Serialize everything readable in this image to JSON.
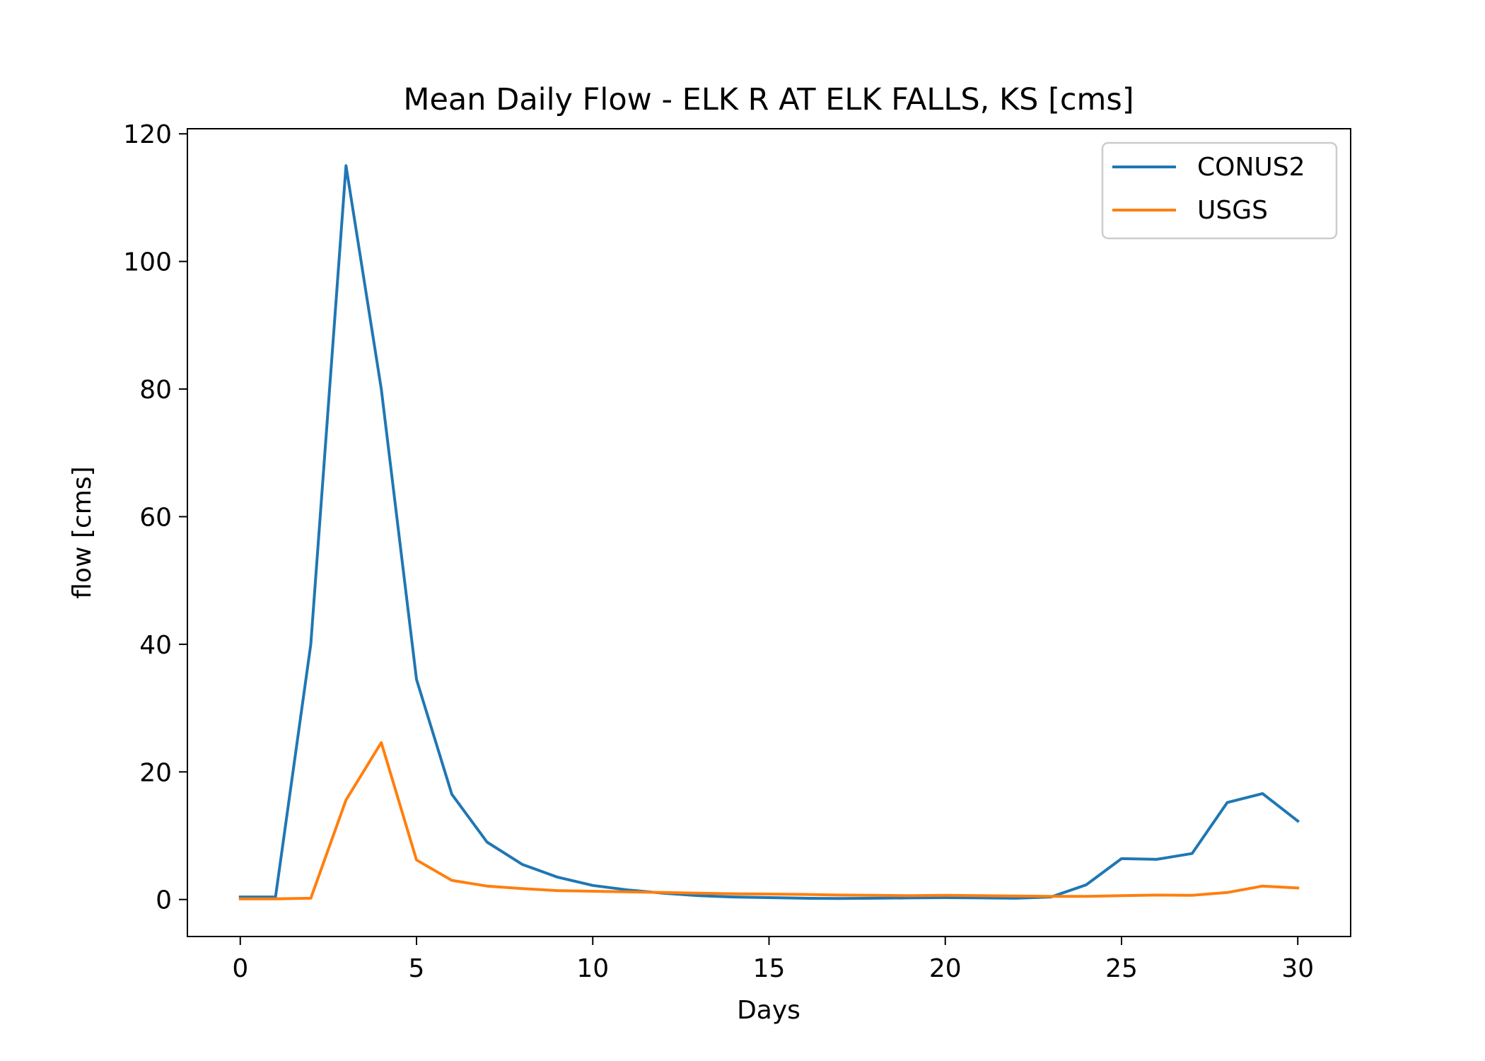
{
  "chart_data": {
    "type": "line",
    "title": "Mean Daily Flow - ELK R AT ELK FALLS, KS [cms]",
    "xlabel": "Days",
    "ylabel": "flow [cms]",
    "xlim": [
      -1.5,
      31.5
    ],
    "ylim": [
      -5.8,
      120.8
    ],
    "xticks": [
      0,
      5,
      10,
      15,
      20,
      25,
      30
    ],
    "yticks": [
      0,
      20,
      40,
      60,
      80,
      100,
      120
    ],
    "grid": false,
    "legend_position": "top-right",
    "x": [
      0,
      1,
      2,
      3,
      4,
      5,
      6,
      7,
      8,
      9,
      10,
      11,
      12,
      13,
      14,
      15,
      16,
      17,
      18,
      19,
      20,
      21,
      22,
      23,
      24,
      25,
      26,
      27,
      28,
      29,
      30
    ],
    "series": [
      {
        "name": "CONUS2",
        "color": "#1f77b4",
        "values": [
          0.4,
          0.4,
          40,
          115,
          80,
          34.5,
          16.5,
          9,
          5.5,
          3.5,
          2.2,
          1.5,
          1.0,
          0.6,
          0.4,
          0.3,
          0.2,
          0.15,
          0.2,
          0.25,
          0.3,
          0.25,
          0.2,
          0.4,
          2.3,
          6.4,
          6.3,
          7.2,
          15.2,
          16.6,
          12.3
        ]
      },
      {
        "name": "USGS",
        "color": "#ff7f0e",
        "values": [
          0.1,
          0.1,
          0.2,
          15.6,
          24.6,
          6.2,
          3.0,
          2.1,
          1.7,
          1.4,
          1.3,
          1.2,
          1.1,
          1.0,
          0.9,
          0.85,
          0.8,
          0.7,
          0.65,
          0.6,
          0.65,
          0.6,
          0.55,
          0.5,
          0.5,
          0.6,
          0.7,
          0.65,
          1.1,
          2.1,
          1.8
        ]
      }
    ]
  }
}
